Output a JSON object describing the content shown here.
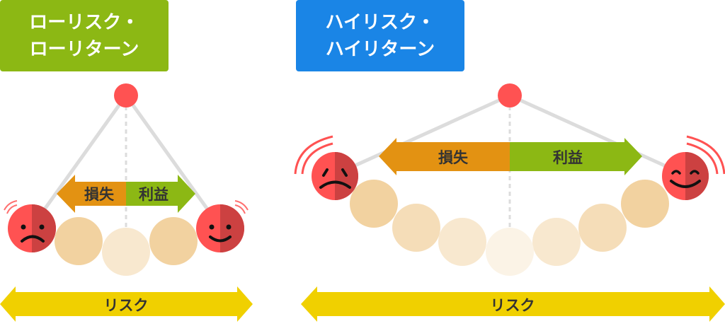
{
  "left": {
    "title_line1": "ローリスク・",
    "title_line2": "ローリターン",
    "loss": "損失",
    "gain": "利益",
    "risk": "リスク"
  },
  "right": {
    "title_line1": "ハイリスク・",
    "title_line2": "ハイリターン",
    "loss": "損失",
    "gain": "利益",
    "risk": "リスク"
  },
  "colors": {
    "low_box": "#8cb814",
    "high_box": "#1a85e6",
    "loss": "#e39212",
    "gain": "#8cb814",
    "risk": "#f0d000",
    "face": "#ff5252",
    "face_shade": "#cc4141"
  }
}
